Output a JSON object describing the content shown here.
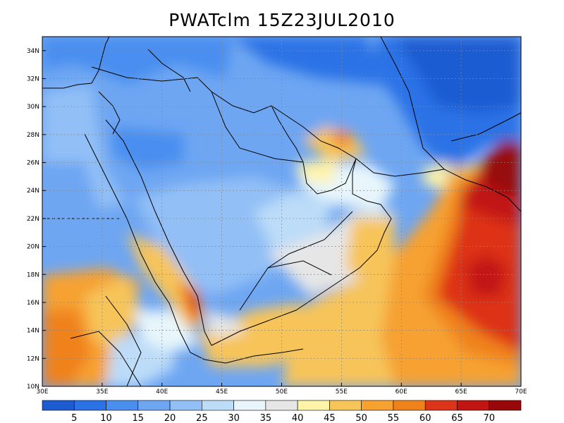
{
  "title": "PWATclm  15Z23JUL2010",
  "map": {
    "lon_range": [
      30,
      70
    ],
    "lat_range": [
      10,
      35
    ],
    "lon_ticks": [
      "30E",
      "35E",
      "40E",
      "45E",
      "50E",
      "55E",
      "60E",
      "65E",
      "70E"
    ],
    "lat_ticks": [
      "10N",
      "12N",
      "14N",
      "16N",
      "18N",
      "20N",
      "22N",
      "24N",
      "26N",
      "28N",
      "30N",
      "32N",
      "34N"
    ],
    "grid": "dotted"
  },
  "colorbar": {
    "labels": [
      "5",
      "10",
      "15",
      "20",
      "25",
      "30",
      "35",
      "40",
      "45",
      "50",
      "55",
      "60",
      "65",
      "70"
    ],
    "colors": [
      "#1c5bd2",
      "#2a72e6",
      "#4a8ef0",
      "#6ea6f2",
      "#92bff6",
      "#bcdcf8",
      "#e8f6fb",
      "#e6e6e6",
      "#fff3a8",
      "#f7c45a",
      "#f6a130",
      "#f0821c",
      "#dd3318",
      "#c21512",
      "#98070a"
    ]
  }
}
